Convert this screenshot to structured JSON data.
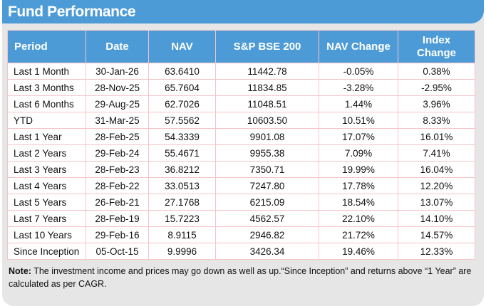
{
  "title": "Fund Performance",
  "colors": {
    "header_blue": "#4d9bd6",
    "table_border_pink": "#f5c3c8",
    "card_gray": "#e6e6e7",
    "header_text": "#ffffff",
    "body_text": "#111111"
  },
  "table": {
    "columns": [
      "Period",
      "Date",
      "NAV",
      "S&P BSE 200",
      "NAV Change",
      "Index Change"
    ],
    "rows": [
      [
        "Last 1 Month",
        "30-Jan-26",
        "63.6410",
        "11442.78",
        "-0.05%",
        "0.38%"
      ],
      [
        "Last 3 Months",
        "28-Nov-25",
        "65.7604",
        "11834.85",
        "-3.28%",
        "-2.95%"
      ],
      [
        "Last 6 Months",
        "29-Aug-25",
        "62.7026",
        "11048.51",
        "1.44%",
        "3.96%"
      ],
      [
        "YTD",
        "31-Mar-25",
        "57.5562",
        "10603.50",
        "10.51%",
        "8.33%"
      ],
      [
        "Last 1 Year",
        "28-Feb-25",
        "54.3339",
        "9901.08",
        "17.07%",
        "16.01%"
      ],
      [
        "Last 2 Years",
        "29-Feb-24",
        "55.4671",
        "9955.38",
        "7.09%",
        "7.41%"
      ],
      [
        "Last 3 Years",
        "28-Feb-23",
        "36.8212",
        "7350.71",
        "19.99%",
        "16.04%"
      ],
      [
        "Last 4 Years",
        "28-Feb-22",
        "33.0513",
        "7247.80",
        "17.78%",
        "12.20%"
      ],
      [
        "Last 5 Years",
        "26-Feb-21",
        "27.1768",
        "6215.09",
        "18.54%",
        "13.07%"
      ],
      [
        "Last 7 Years",
        "28-Feb-19",
        "15.7223",
        "4562.57",
        "22.10%",
        "14.10%"
      ],
      [
        "Last 10 Years",
        "29-Feb-16",
        "8.9115",
        "2946.82",
        "21.72%",
        "14.57%"
      ],
      [
        "Since Inception",
        "05-Oct-15",
        "9.9996",
        "3426.34",
        "19.46%",
        "12.33%"
      ]
    ]
  },
  "note": {
    "label": "Note:",
    "text": " The investment income and prices may go down as well as up.“Since Inception” and returns above “1 Year” are calculated as per CAGR."
  }
}
